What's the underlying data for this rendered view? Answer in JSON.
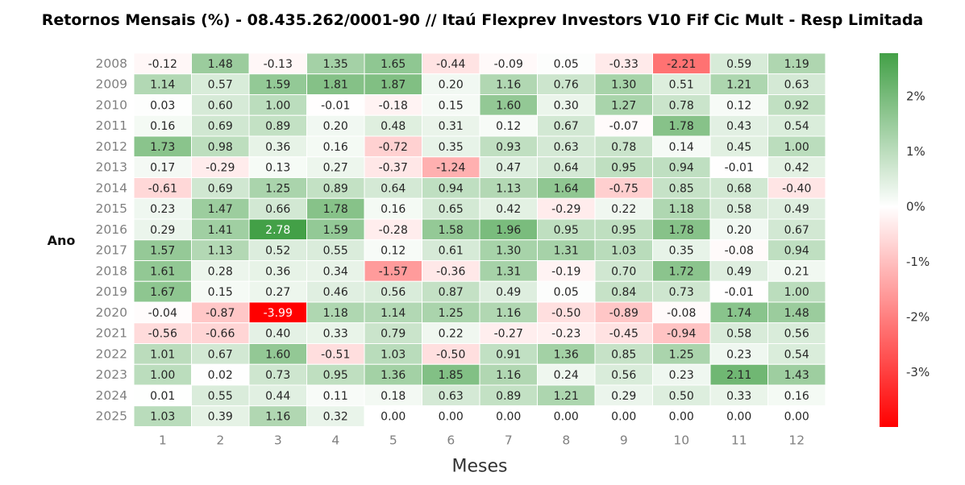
{
  "chart_data": {
    "type": "heatmap",
    "title": "Retornos Mensais (%) - 08.435.262/0001-90 // Itaú Flexprev Investors V10 Fif Cic Mult - Resp Limitada",
    "xlabel": "Meses",
    "ylabel": "Ano",
    "x_categories": [
      "1",
      "2",
      "3",
      "4",
      "5",
      "6",
      "7",
      "8",
      "9",
      "10",
      "11",
      "12"
    ],
    "y_categories": [
      "2008",
      "2009",
      "2010",
      "2011",
      "2012",
      "2013",
      "2014",
      "2015",
      "2016",
      "2017",
      "2018",
      "2019",
      "2020",
      "2021",
      "2022",
      "2023",
      "2024",
      "2025"
    ],
    "values": [
      [
        -0.12,
        1.48,
        -0.13,
        1.35,
        1.65,
        -0.44,
        -0.09,
        0.05,
        -0.33,
        -2.21,
        0.59,
        1.19
      ],
      [
        1.14,
        0.57,
        1.59,
        1.81,
        1.87,
        0.2,
        1.16,
        0.76,
        1.3,
        0.51,
        1.21,
        0.63
      ],
      [
        0.03,
        0.6,
        1.0,
        -0.01,
        -0.18,
        0.15,
        1.6,
        0.3,
        1.27,
        0.78,
        0.12,
        0.92
      ],
      [
        0.16,
        0.69,
        0.89,
        0.2,
        0.48,
        0.31,
        0.12,
        0.67,
        -0.07,
        1.78,
        0.43,
        0.54
      ],
      [
        1.73,
        0.98,
        0.36,
        0.16,
        -0.72,
        0.35,
        0.93,
        0.63,
        0.78,
        0.14,
        0.45,
        1.0
      ],
      [
        0.17,
        -0.29,
        0.13,
        0.27,
        -0.37,
        -1.24,
        0.47,
        0.64,
        0.95,
        0.94,
        -0.01,
        0.42
      ],
      [
        -0.61,
        0.69,
        1.25,
        0.89,
        0.64,
        0.94,
        1.13,
        1.64,
        -0.75,
        0.85,
        0.68,
        -0.4
      ],
      [
        0.23,
        1.47,
        0.66,
        1.78,
        0.16,
        0.65,
        0.42,
        -0.29,
        0.22,
        1.18,
        0.58,
        0.49
      ],
      [
        0.29,
        1.41,
        2.78,
        1.59,
        -0.28,
        1.58,
        1.96,
        0.95,
        0.95,
        1.78,
        0.2,
        0.67
      ],
      [
        1.57,
        1.13,
        0.52,
        0.55,
        0.12,
        0.61,
        1.3,
        1.31,
        1.03,
        0.35,
        -0.08,
        0.94
      ],
      [
        1.61,
        0.28,
        0.36,
        0.34,
        -1.57,
        -0.36,
        1.31,
        -0.19,
        0.7,
        1.72,
        0.49,
        0.21
      ],
      [
        1.67,
        0.15,
        0.27,
        0.46,
        0.56,
        0.87,
        0.49,
        0.05,
        0.84,
        0.73,
        -0.01,
        1.0
      ],
      [
        -0.04,
        -0.87,
        -3.99,
        1.18,
        1.14,
        1.25,
        1.16,
        -0.5,
        -0.89,
        -0.08,
        1.74,
        1.48
      ],
      [
        -0.56,
        -0.66,
        0.4,
        0.33,
        0.79,
        0.22,
        -0.27,
        -0.23,
        -0.45,
        -0.94,
        0.58,
        0.56
      ],
      [
        1.01,
        0.67,
        1.6,
        -0.51,
        1.03,
        -0.5,
        0.91,
        1.36,
        0.85,
        1.25,
        0.23,
        0.54
      ],
      [
        1.0,
        0.02,
        0.73,
        0.95,
        1.36,
        1.85,
        1.16,
        0.24,
        0.56,
        0.23,
        2.11,
        1.43
      ],
      [
        0.01,
        0.55,
        0.44,
        0.11,
        0.18,
        0.63,
        0.89,
        1.21,
        0.29,
        0.5,
        0.33,
        0.16
      ],
      [
        1.03,
        0.39,
        1.16,
        0.32,
        0.0,
        0.0,
        0.0,
        0.0,
        0.0,
        0.0,
        0.0,
        0.0
      ]
    ],
    "color_scale": {
      "min": -3.99,
      "max": 2.78,
      "center": 0,
      "low_color": "#ff0000",
      "mid_color": "#ffffff",
      "high_color": "#43a047"
    },
    "colorbar_ticks": [
      -3,
      -2,
      -1,
      0,
      1,
      2
    ],
    "colorbar_tick_suffix": "%",
    "value_format_decimals": 2,
    "legend": "colorbar-right",
    "grid": false
  }
}
